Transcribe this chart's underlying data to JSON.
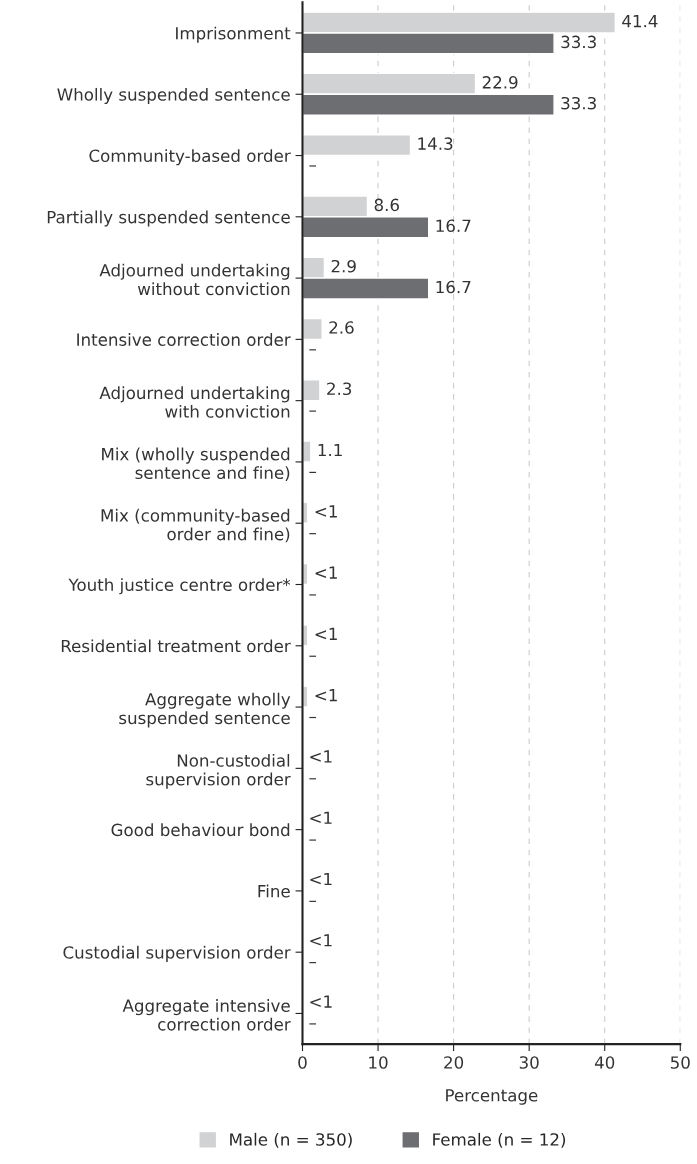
{
  "chart_data": {
    "type": "bar",
    "orientation": "horizontal",
    "xlabel": "Percentage",
    "categories": [
      "Imprisonment",
      "Wholly suspended sentence",
      "Community-based order",
      "Partially suspended sentence",
      "Adjourned undertaking\nwithout conviction",
      "Intensive correction order",
      "Adjourned undertaking\nwith conviction",
      "Mix (wholly suspended\nsentence and fine)",
      "Mix (community-based\norder and fine)",
      "Youth justice centre order*",
      "Residential treatment order",
      "Aggregate wholly\nsuspended sentence",
      "Non-custodial\nsupervision order",
      "Good behaviour bond",
      "Fine",
      "Custodial supervision order",
      "Aggregate intensive\ncorrection order"
    ],
    "series": [
      {
        "name": "Male (n = 350)",
        "color": "#d1d2d4",
        "values": [
          41.4,
          22.9,
          14.3,
          8.6,
          2.9,
          2.6,
          2.3,
          1.1,
          0.7,
          0.7,
          0.7,
          0.7,
          null,
          null,
          null,
          null,
          null
        ],
        "value_labels": [
          "41.4",
          "22.9",
          "14.3",
          "8.6",
          "2.9",
          "2.6",
          "2.3",
          "1.1",
          "<1",
          "<1",
          "<1",
          "<1",
          "<1",
          "<1",
          "<1",
          "<1",
          "<1"
        ]
      },
      {
        "name": "Female (n = 12)",
        "color": "#6d6e71",
        "values": [
          33.3,
          33.3,
          null,
          16.7,
          16.7,
          null,
          null,
          null,
          null,
          null,
          null,
          null,
          null,
          null,
          null,
          null,
          null
        ],
        "value_labels": [
          "33.3",
          "33.3",
          "–",
          "16.7",
          "16.7",
          "–",
          "–",
          "–",
          "–",
          "–",
          "–",
          "–",
          "–",
          "–",
          "–",
          "–",
          "–"
        ]
      }
    ],
    "xlim": [
      0,
      50
    ],
    "xticks": [
      0,
      10,
      20,
      30,
      40,
      50
    ],
    "grid": "x",
    "legend": "bottom"
  }
}
